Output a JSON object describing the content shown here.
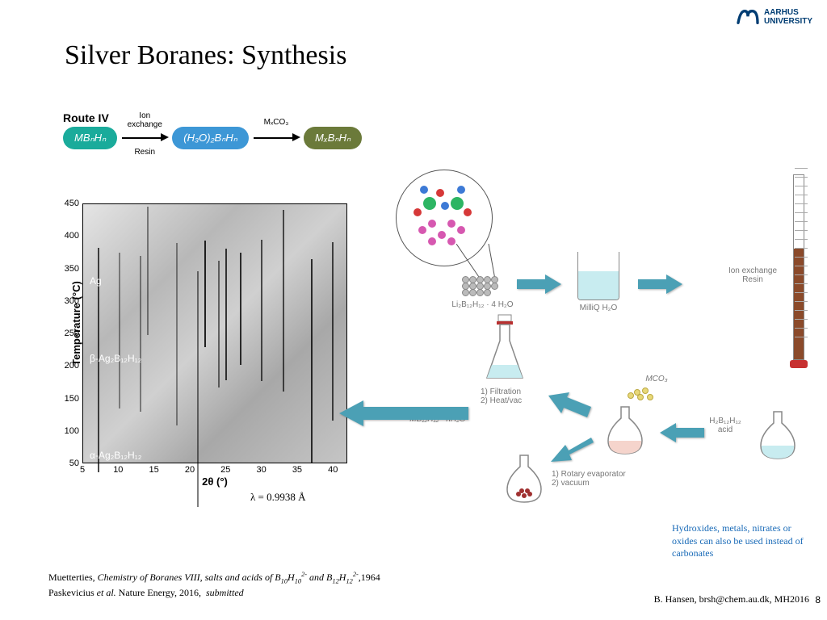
{
  "logo": {
    "line1": "AARHUS",
    "line2": "UNIVERSITY",
    "mark_color": "#003d73"
  },
  "title": "Silver Boranes: Synthesis",
  "route": {
    "label": "Route IV",
    "step1": "MBₙHₙ",
    "arrow1_above": "Ion",
    "arrow1_above2": "exchange",
    "arrow1_below": "Resin",
    "step2": "(H₃O)₂BₙHₙ",
    "arrow2_above": "MₓCO₃",
    "step3": "MₓBₙHₙ"
  },
  "plot": {
    "y_label": "Temperature (°C)",
    "y_ticks": [
      50,
      100,
      150,
      200,
      250,
      300,
      350,
      400,
      450
    ],
    "y_min": 50,
    "y_max": 450,
    "x_label": "2θ (°)",
    "x_ticks": [
      5,
      10,
      15,
      20,
      25,
      30,
      35,
      40
    ],
    "x_min": 5,
    "x_max": 42,
    "phases": [
      {
        "label": "Ag",
        "y": 340
      },
      {
        "label": "β-Ag₂B₁₂H₁₂",
        "y": 220
      },
      {
        "label": "α-Ag₂B₁₂H₁₂",
        "y": 70
      }
    ],
    "streaks": [
      7,
      10,
      13,
      14,
      18,
      21,
      22,
      24,
      25,
      27,
      30,
      33,
      37,
      40
    ],
    "wavelength": "λ = 0.9938 Å"
  },
  "schematic": {
    "powder_label": "Li₂B₁₂H₁₂ · 4 H₂O",
    "beaker_label": "MilliQ H₂O",
    "column_label": "Ion exchange\nResin",
    "acid_label": "H₂B₁₂H₁₂\nacid",
    "carbonate_label": "MCO₃",
    "erlen_step1": "1) Filtration",
    "erlen_step2": "2) Heat/vac",
    "product_label": "MB₁₂H₁₂ · nH₂O",
    "rotary_step1": "1) Rotary evaporator",
    "rotary_step2": "2) vacuum",
    "arrow_color": "#4ba0b5",
    "water_color": "#c8ecf0",
    "resin_color": "#8b4a2a",
    "pink_liquid": "#f5d4cc"
  },
  "note": "Hydroxides, metals, nitrates or oxides can also be used instead of carbonates",
  "ref1": "Muetterties, Chemistry of Boranes VIII, salts and acids of B₁₀H₁₀²⁻ and B₁₂H₁₂²⁻,1964",
  "ref2": "Paskevicius et al. Nature Energy, 2016,  submitted",
  "footer": "B. Hansen, brsh@chem.au.dk, MH2016",
  "page": "8"
}
